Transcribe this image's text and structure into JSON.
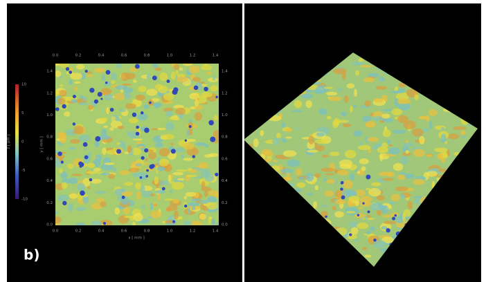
{
  "figure": {
    "panel_label": "b)",
    "map": {
      "x_axis_label": "x [ mm ]",
      "y_axis_label": "y [ mm ]",
      "x_ticks": [
        "0.0",
        "0.2",
        "0.4",
        "0.6",
        "0.8",
        "1.0",
        "1.2",
        "1.4"
      ],
      "y_ticks": [
        "0.0",
        "0.2",
        "0.4",
        "0.6",
        "0.8",
        "1.0",
        "1.2",
        "1.4"
      ]
    },
    "colorbar": {
      "label": "z [ µm ]",
      "ticks": [
        "10",
        "5",
        "0",
        "-5",
        "-10"
      ]
    }
  }
}
